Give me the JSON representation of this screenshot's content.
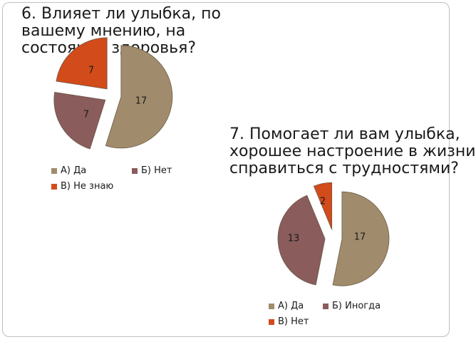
{
  "slide": {
    "title_1": "6. Влияет ли улыбка, по\nвашему мнению, на\nсостояние здоровья?",
    "title_2": "7. Помогает ли вам улыбка,\nхорошее настроение в жизни\nсправиться с трудностями?"
  },
  "chart_data": [
    {
      "type": "pie",
      "title": "",
      "categories": [
        "А) Да",
        "Б) Нет",
        "В) Не знаю"
      ],
      "values": [
        17,
        7,
        7
      ],
      "data_labels": [
        "17",
        "7",
        "7"
      ],
      "colors": [
        "#a08c6c",
        "#8a5c5c",
        "#d24b1a"
      ],
      "exploded": true,
      "legend_position": "bottom"
    },
    {
      "type": "pie",
      "title": "",
      "categories": [
        "А) Да",
        "Б) Иногда",
        "В) Нет"
      ],
      "values": [
        17,
        13,
        2
      ],
      "data_labels": [
        "17",
        "13",
        "2"
      ],
      "colors": [
        "#a08c6c",
        "#8a5c5c",
        "#d24b1a"
      ],
      "exploded": true,
      "legend_position": "bottom"
    }
  ]
}
